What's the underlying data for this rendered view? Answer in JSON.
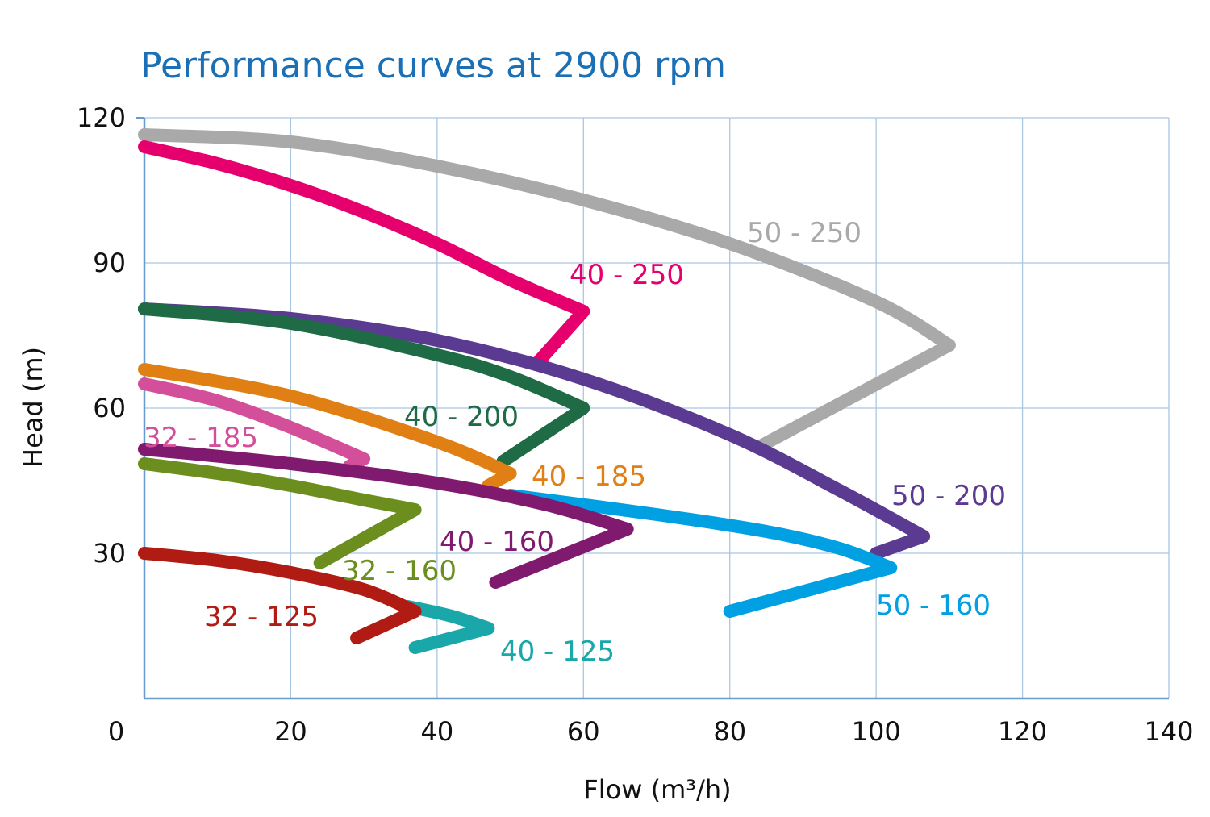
{
  "chart_data": {
    "type": "line",
    "title": "Performance curves at 2900 rpm",
    "xlabel": "Flow (m³/h)",
    "ylabel": "Head (m)",
    "xlim": [
      0,
      140
    ],
    "ylim": [
      0,
      120
    ],
    "x_ticks": [
      "0",
      "20",
      "40",
      "60",
      "80",
      "100",
      "120",
      "140"
    ],
    "y_ticks": [
      "30",
      "60",
      "90",
      "120"
    ],
    "grid": true,
    "series": [
      {
        "name": "50 - 250",
        "color": "#a9a9a9",
        "x": [
          0,
          20,
          40,
          60,
          80,
          100,
          110,
          84
        ],
        "y": [
          116.5,
          115,
          110,
          103,
          94,
          82,
          73,
          52
        ]
      },
      {
        "name": "40 - 250",
        "color": "#e5006e",
        "x": [
          0,
          10,
          20,
          30,
          40,
          50,
          60,
          53.5
        ],
        "y": [
          114,
          110.5,
          106,
          100.5,
          94,
          86.5,
          80,
          69
        ]
      },
      {
        "name": "50 - 200",
        "color": "#5b3a91",
        "x": [
          0,
          20,
          40,
          60,
          80,
          95,
          106.5,
          100
        ],
        "y": [
          80.5,
          78.5,
          74,
          66,
          54.5,
          43,
          33.5,
          30
        ]
      },
      {
        "name": "40 - 200",
        "color": "#1f6b45",
        "x": [
          0,
          20,
          40,
          50,
          60,
          49
        ],
        "y": [
          80.5,
          77.5,
          71,
          66.5,
          60,
          49
        ]
      },
      {
        "name": "40 - 185",
        "color": "#e07f13",
        "x": [
          0,
          20,
          40,
          50,
          47
        ],
        "y": [
          68,
          62.5,
          53,
          46.5,
          44
        ]
      },
      {
        "name": "32 - 185",
        "color": "#d44f9a",
        "x": [
          0,
          10,
          20,
          30,
          28
        ],
        "y": [
          65,
          61.5,
          56,
          49.5,
          48
        ]
      },
      {
        "name": "50 - 160",
        "color": "#00a0e3",
        "x": [
          50,
          70,
          85,
          95,
          102,
          80
        ],
        "y": [
          42,
          38,
          34.5,
          31,
          27,
          18
        ]
      },
      {
        "name": "40 - 160",
        "color": "#7f1a6e",
        "x": [
          0,
          20,
          40,
          55,
          66,
          48
        ],
        "y": [
          51.5,
          48.5,
          44.5,
          40,
          35,
          24
        ]
      },
      {
        "name": "32 - 160",
        "color": "#6b8e1f",
        "x": [
          0,
          10,
          20,
          30,
          37,
          24
        ],
        "y": [
          48.5,
          46.5,
          44,
          41,
          39,
          28
        ]
      },
      {
        "name": "40 - 125",
        "color": "#1aa7a9",
        "x": [
          36,
          42,
          47,
          37
        ],
        "y": [
          19,
          17,
          14.5,
          10.5
        ]
      },
      {
        "name": "32 - 125",
        "color": "#b01c14",
        "x": [
          0,
          10,
          20,
          30,
          37,
          29
        ],
        "y": [
          30,
          28.5,
          26,
          22.5,
          18,
          12.5
        ]
      }
    ]
  }
}
